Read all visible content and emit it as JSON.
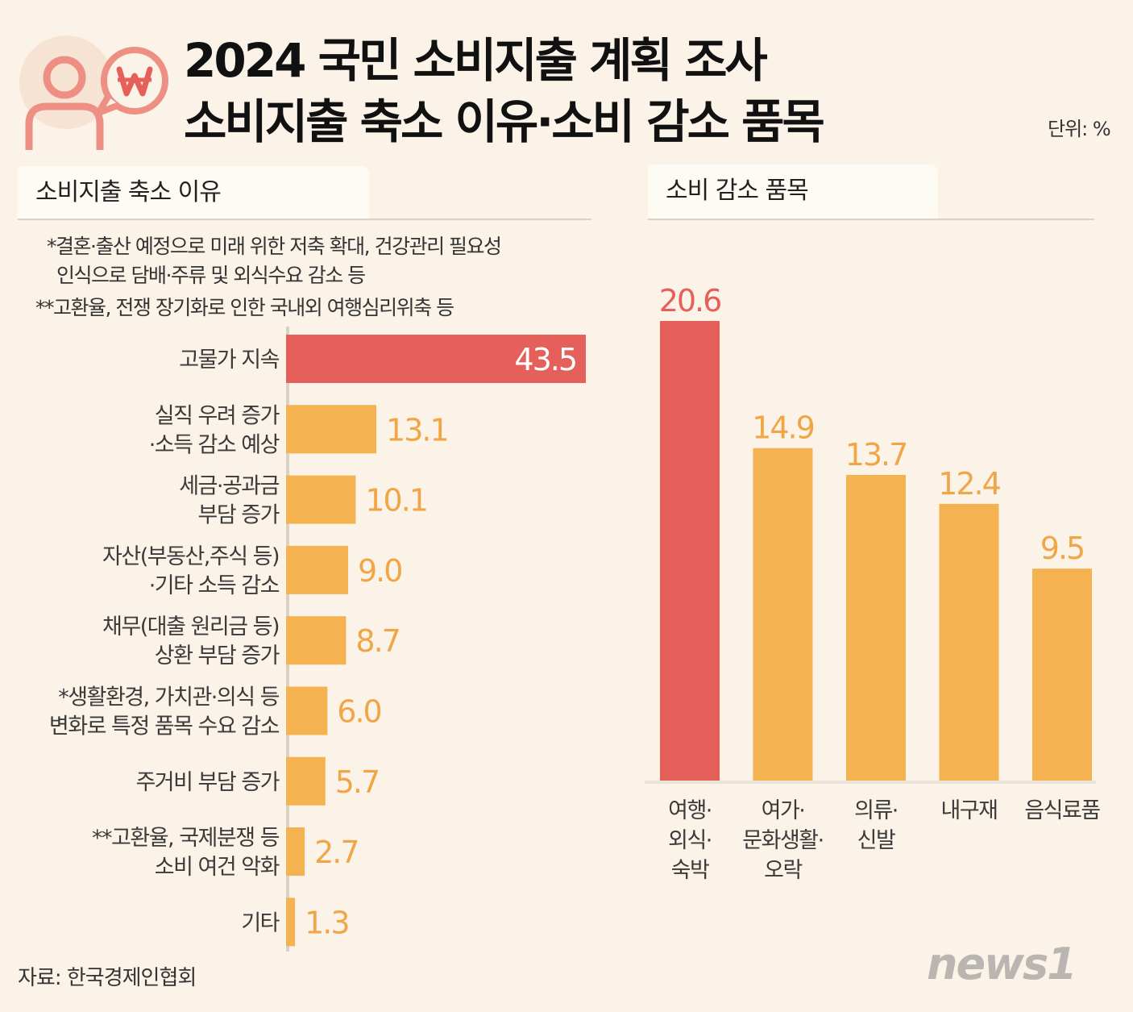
{
  "header": {
    "title_line1": "2024 국민 소비지출 계획 조사",
    "title_line2": "소비지출 축소 이유·소비 감소 품목",
    "unit": "단위: %"
  },
  "colors": {
    "highlight": "#e5605a",
    "bar": "#f5b251",
    "value_text": "#f0a646",
    "label_text": "#3a3a3a",
    "icon": "#ee8f84"
  },
  "left_section": {
    "heading": "소비지출 축소 이유",
    "notes": [
      "*결혼·출산 예정으로 미래 위한 저축 확대, 건강관리 필요성",
      "인식으로 담배·주류 및 외식수요 감소 등",
      "**고환율, 전쟁 장기화로 인한 국내외 여행심리위축 등"
    ]
  },
  "right_section": {
    "heading": "소비 감소 품목"
  },
  "chart_data": [
    {
      "type": "bar",
      "orientation": "horizontal",
      "title": "소비지출 축소 이유",
      "categories": [
        [
          "고물가 지속"
        ],
        [
          "실직 우려 증가",
          "·소득 감소 예상"
        ],
        [
          "세금·공과금",
          "부담 증가"
        ],
        [
          "자산(부동산,주식 등)",
          "·기타 소득 감소"
        ],
        [
          "채무(대출 원리금 등)",
          "상환 부담 증가"
        ],
        [
          "*생활환경, 가치관·의식 등",
          "변화로 특정 품목 수요 감소"
        ],
        [
          "주거비 부담 증가"
        ],
        [
          "**고환율, 국제분쟁 등",
          "소비 여건 악화"
        ],
        [
          "기타"
        ]
      ],
      "values": [
        43.5,
        13.1,
        10.1,
        9.0,
        8.7,
        6.0,
        5.7,
        2.7,
        1.3
      ],
      "value_labels": [
        "43.5",
        "13.1",
        "10.1",
        "9.0",
        "8.7",
        "6.0",
        "5.7",
        "2.7",
        "1.3"
      ],
      "highlight_index": 0,
      "xlim": [
        0,
        43.5
      ]
    },
    {
      "type": "bar",
      "orientation": "vertical",
      "title": "소비 감소 품목",
      "categories": [
        [
          "여행·",
          "외식·",
          "숙박"
        ],
        [
          "여가·",
          "문화생활·",
          "오락"
        ],
        [
          "의류·",
          "신발"
        ],
        [
          "내구재"
        ],
        [
          "음식료품"
        ]
      ],
      "values": [
        20.6,
        14.9,
        13.7,
        12.4,
        9.5
      ],
      "value_labels": [
        "20.6",
        "14.9",
        "13.7",
        "12.4",
        "9.5"
      ],
      "highlight_index": 0,
      "ylim": [
        0,
        20.6
      ]
    }
  ],
  "footer": {
    "source": "자료: 한국경제인협회",
    "logo_text": "news1"
  }
}
